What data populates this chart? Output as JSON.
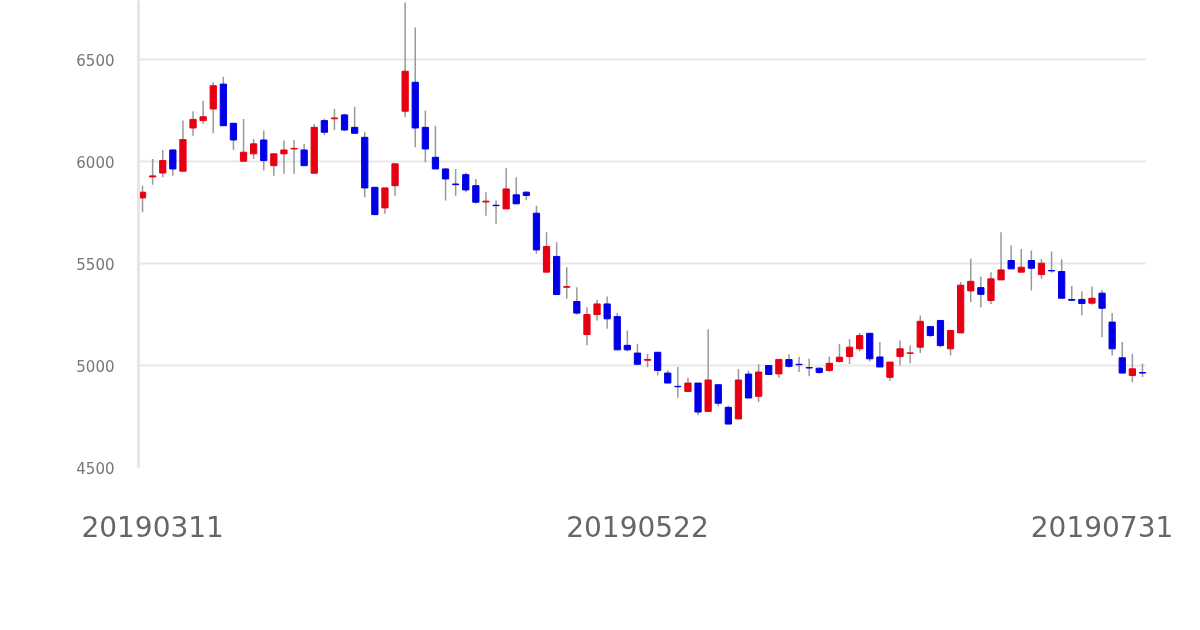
{
  "chart_data": {
    "type": "candlestick",
    "categories": [
      null,
      "20190311",
      null,
      null,
      null,
      null,
      null,
      null,
      null,
      null,
      null,
      null,
      null,
      null,
      null,
      null,
      null,
      null,
      null,
      null,
      null,
      null,
      null,
      null,
      null,
      null,
      null,
      null,
      null,
      null,
      null,
      null,
      null,
      null,
      null,
      null,
      null,
      null,
      null,
      null,
      null,
      null,
      null,
      null,
      null,
      null,
      null,
      null,
      null,
      "20190522",
      null,
      null,
      null,
      null,
      null,
      null,
      null,
      null,
      null,
      null,
      null,
      null,
      null,
      null,
      null,
      null,
      null,
      null,
      null,
      null,
      null,
      null,
      null,
      null,
      null,
      null,
      null,
      null,
      null,
      null,
      null,
      null,
      null,
      null,
      null,
      null,
      null,
      null,
      null,
      null,
      null,
      null,
      null,
      null,
      null,
      "20190731",
      null,
      null,
      null,
      null
    ],
    "ohlc": [
      [
        5822,
        5882,
        5752,
        5850
      ],
      [
        5925,
        6013,
        5887,
        5930
      ],
      [
        5944,
        6057,
        5923,
        6005
      ],
      [
        6057,
        6060,
        5931,
        5964
      ],
      [
        5953,
        6201,
        5953,
        6108
      ],
      [
        6165,
        6247,
        6127,
        6207
      ],
      [
        6201,
        6299,
        6185,
        6220
      ],
      [
        6258,
        6389,
        6139,
        6372
      ],
      [
        6380,
        6416,
        6176,
        6176
      ],
      [
        6188,
        6188,
        6057,
        6106
      ],
      [
        6002,
        6209,
        6002,
        6046
      ],
      [
        6038,
        6111,
        6013,
        6087
      ],
      [
        6106,
        6152,
        5956,
        6005
      ],
      [
        5980,
        6038,
        5931,
        6038
      ],
      [
        6038,
        6103,
        5940,
        6057
      ],
      [
        6062,
        6106,
        5940,
        6065
      ],
      [
        6057,
        6087,
        5980,
        5980
      ],
      [
        5943,
        6185,
        5943,
        6168
      ],
      [
        6201,
        6210,
        6130,
        6144
      ],
      [
        6210,
        6258,
        6155,
        6214
      ],
      [
        6229,
        6235,
        6150,
        6155
      ],
      [
        6168,
        6269,
        6139,
        6139
      ],
      [
        6119,
        6144,
        5825,
        5871
      ],
      [
        5874,
        5874,
        5740,
        5740
      ],
      [
        5773,
        5871,
        5744,
        5871
      ],
      [
        5882,
        5989,
        5833,
        5989
      ],
      [
        6247,
        6780,
        6217,
        6443
      ],
      [
        6389,
        6658,
        6070,
        6165
      ],
      [
        6168,
        6250,
        5997,
        6062
      ],
      [
        6021,
        6176,
        5964,
        5964
      ],
      [
        5964,
        5970,
        5809,
        5915
      ],
      [
        5890,
        5964,
        5833,
        5887
      ],
      [
        5936,
        5945,
        5850,
        5861
      ],
      [
        5882,
        5915,
        5795,
        5801
      ],
      [
        5802,
        5850,
        5735,
        5806
      ],
      [
        5786,
        5809,
        5695,
        5784
      ],
      [
        5768,
        5969,
        5768,
        5866
      ],
      [
        5837,
        5923,
        5793,
        5793
      ],
      [
        5850,
        5855,
        5810,
        5834
      ],
      [
        5747,
        5784,
        5548,
        5567
      ],
      [
        5458,
        5654,
        5458,
        5584
      ],
      [
        5535,
        5605,
        5348,
        5348
      ],
      [
        5384,
        5482,
        5327,
        5387
      ],
      [
        5314,
        5384,
        5250,
        5257
      ],
      [
        5152,
        5286,
        5099,
        5250
      ],
      [
        5250,
        5322,
        5221,
        5302
      ],
      [
        5302,
        5338,
        5180,
        5229
      ],
      [
        5240,
        5257,
        5077,
        5077
      ],
      [
        5099,
        5172,
        5070,
        5077
      ],
      [
        5061,
        5107,
        5006,
        5006
      ],
      [
        5026,
        5058,
        4992,
        5030
      ],
      [
        5065,
        5065,
        4951,
        4976
      ],
      [
        4963,
        4976,
        4914,
        4914
      ],
      [
        4898,
        4993,
        4842,
        4896
      ],
      [
        4873,
        4940,
        4873,
        4914
      ],
      [
        4914,
        4914,
        4756,
        4772
      ],
      [
        4775,
        5178,
        4775,
        4929
      ],
      [
        4906,
        4906,
        4800,
        4815
      ],
      [
        4795,
        4803,
        4713,
        4713
      ],
      [
        4738,
        4983,
        4738,
        4929
      ],
      [
        4958,
        4975,
        4841,
        4841
      ],
      [
        4849,
        5006,
        4821,
        4968
      ],
      [
        5000,
        5000,
        4956,
        4956
      ],
      [
        4959,
        5030,
        4940,
        5030
      ],
      [
        5029,
        5055,
        4990,
        4996
      ],
      [
        5006,
        5042,
        4968,
        5004
      ],
      [
        4990,
        5035,
        4948,
        4988
      ],
      [
        4987,
        4990,
        4960,
        4966
      ],
      [
        4976,
        5044,
        4970,
        5011
      ],
      [
        5020,
        5106,
        5015,
        5041
      ],
      [
        5044,
        5130,
        5008,
        5090
      ],
      [
        5082,
        5160,
        5070,
        5147
      ],
      [
        5158,
        5160,
        5020,
        5033
      ],
      [
        5042,
        5116,
        4993,
        4993
      ],
      [
        4942,
        5017,
        4925,
        5017
      ],
      [
        5044,
        5123,
        5002,
        5082
      ],
      [
        5060,
        5098,
        5011,
        5062
      ],
      [
        5090,
        5245,
        5062,
        5217
      ],
      [
        5191,
        5191,
        5140,
        5147
      ],
      [
        5221,
        5221,
        5090,
        5098
      ],
      [
        5082,
        5172,
        5049,
        5172
      ],
      [
        5160,
        5410,
        5160,
        5394
      ],
      [
        5366,
        5524,
        5312,
        5413
      ],
      [
        5382,
        5436,
        5284,
        5349
      ],
      [
        5319,
        5458,
        5302,
        5425
      ],
      [
        5420,
        5654,
        5420,
        5469
      ],
      [
        5515,
        5589,
        5474,
        5474
      ],
      [
        5458,
        5572,
        5458,
        5482
      ],
      [
        5515,
        5564,
        5368,
        5477
      ],
      [
        5446,
        5523,
        5425,
        5502
      ],
      [
        5466,
        5559,
        5455,
        5464
      ],
      [
        5461,
        5521,
        5330,
        5330
      ],
      [
        5324,
        5390,
        5316,
        5320
      ],
      [
        5324,
        5364,
        5247,
        5304
      ],
      [
        5306,
        5387,
        5298,
        5330
      ],
      [
        5355,
        5371,
        5139,
        5281
      ],
      [
        5213,
        5257,
        5049,
        5082
      ],
      [
        5038,
        5115,
        4963,
        4963
      ],
      [
        4951,
        5058,
        4918,
        4984
      ],
      [
        4966,
        5010,
        4944,
        4963
      ]
    ],
    "colors": [
      "#e60012",
      "#e60012",
      "#e60012",
      "#0000e6",
      "#e60012",
      "#e60012",
      "#e60012",
      "#e60012",
      "#0000e6",
      "#0000e6",
      "#e60012",
      "#e60012",
      "#0000e6",
      "#e60012",
      "#e60012",
      "#e60012",
      "#0000e6",
      "#e60012",
      "#0000e6",
      "#e60012",
      "#0000e6",
      "#0000e6",
      "#0000e6",
      "#0000e6",
      "#e60012",
      "#e60012",
      "#e60012",
      "#0000e6",
      "#0000e6",
      "#0000e6",
      "#0000e6",
      "#0000e6",
      "#0000e6",
      "#0000e6",
      "#e60012",
      "#0000e6",
      "#e60012",
      "#0000e6",
      "#0000e6",
      "#0000e6",
      "#e60012",
      "#0000e6",
      "#e60012",
      "#0000e6",
      "#e60012",
      "#e60012",
      "#0000e6",
      "#0000e6",
      "#0000e6",
      "#0000e6",
      "#e60012",
      "#0000e6",
      "#0000e6",
      "#0000e6",
      "#e60012",
      "#0000e6",
      "#e60012",
      "#0000e6",
      "#0000e6",
      "#e60012",
      "#0000e6",
      "#e60012",
      "#0000e6",
      "#e60012",
      "#0000e6",
      "#0000e6",
      "#0000e6",
      "#0000e6",
      "#e60012",
      "#e60012",
      "#e60012",
      "#e60012",
      "#0000e6",
      "#0000e6",
      "#e60012",
      "#e60012",
      "#e60012",
      "#e60012",
      "#0000e6",
      "#0000e6",
      "#e60012",
      "#e60012",
      "#e60012",
      "#0000e6",
      "#e60012",
      "#e60012",
      "#0000e6",
      "#e60012",
      "#0000e6",
      "#e60012",
      "#0000e6",
      "#0000e6",
      "#0000e6",
      "#0000e6",
      "#e60012",
      "#0000e6",
      "#0000e6",
      "#0000e6",
      "#e60012",
      "#0000e6"
    ],
    "ylim": [
      4500,
      6790
    ],
    "yticks": [
      4500,
      5000,
      5500,
      6000,
      6500
    ],
    "grid": "y"
  }
}
